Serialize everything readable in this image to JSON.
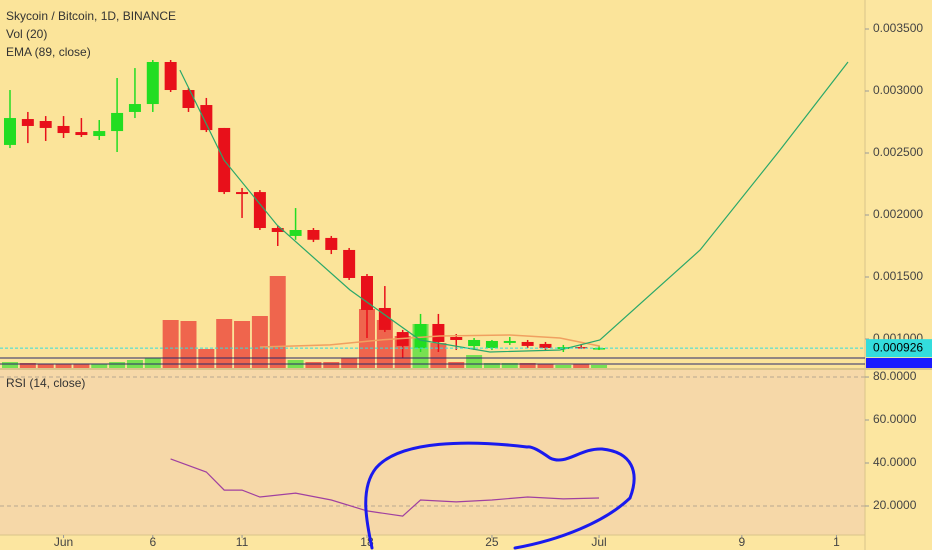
{
  "chart_data": {
    "type": "candlestick",
    "title": "Skycoin / Bitcoin, 1D, BINANCE",
    "volume_label": "Vol (20)",
    "ema_label": "EMA (89, close)",
    "up_color": "#22dd22",
    "down_color": "#e8101a",
    "open": [
      0.002565,
      0.002774,
      0.002758,
      0.002718,
      0.002669,
      0.002637,
      0.002677,
      0.002831,
      0.002895,
      0.003234,
      0.003008,
      0.002887,
      0.002702,
      0.002185,
      0.002185,
      0.001895,
      0.001831,
      0.001879,
      0.001815,
      0.001718,
      0.001508,
      0.00125,
      0.001056,
      0.000927,
      0.001121,
      0.001016,
      0.000943,
      0.000927,
      0.000968,
      0.000976,
      0.00096,
      0.000919,
      0.000935,
      0.000919
    ],
    "high": [
      0.003008,
      0.002831,
      0.002798,
      0.002798,
      0.002782,
      0.002766,
      0.003105,
      0.003185,
      0.00325,
      0.00325,
      0.003024,
      0.002944,
      0.002702,
      0.002218,
      0.002201,
      0.001911,
      0.002056,
      0.001895,
      0.001831,
      0.001734,
      0.001524,
      0.001427,
      0.001073,
      0.001202,
      0.001202,
      0.00104,
      0.001008,
      0.000992,
      0.001016,
      0.000992,
      0.000976,
      0.000952,
      0.00096,
      0.000944
    ],
    "low": [
      0.00254,
      0.00258,
      0.002597,
      0.002621,
      0.002629,
      0.002605,
      0.002508,
      0.002782,
      0.002831,
      0.002992,
      0.002831,
      0.002669,
      0.002169,
      0.001976,
      0.001879,
      0.00175,
      0.0018,
      0.001782,
      0.001685,
      0.001476,
      0.001008,
      0.001056,
      0.000847,
      0.000895,
      0.000895,
      0.000911,
      0.000911,
      0.000911,
      0.000952,
      0.000927,
      0.000911,
      0.000895,
      0.000919,
      0.000911
    ],
    "close": [
      0.002782,
      0.002718,
      0.002702,
      0.002661,
      0.002645,
      0.002677,
      0.002823,
      0.002895,
      0.003234,
      0.003008,
      0.002863,
      0.002685,
      0.002185,
      0.002169,
      0.001895,
      0.001863,
      0.001879,
      0.0018,
      0.001718,
      0.001492,
      0.001234,
      0.001073,
      0.000944,
      0.001121,
      0.000976,
      0.000992,
      0.000992,
      0.000984,
      0.000984,
      0.000944,
      0.000927,
      0.000935,
      0.000927,
      0.000927
    ],
    "volume": [
      6,
      5,
      4,
      4,
      4,
      4,
      6,
      8,
      10,
      48,
      47,
      19,
      49,
      47,
      52,
      92,
      8,
      6,
      6,
      10,
      59,
      48,
      32,
      44,
      25,
      6,
      13,
      5,
      5,
      5,
      4,
      3,
      4,
      3
    ],
    "xlim": [
      -0.56,
      47.9
    ],
    "xticks": [
      {
        "value": 3,
        "label": "Jun"
      },
      {
        "value": 8,
        "label": "6"
      },
      {
        "value": 13,
        "label": "11"
      },
      {
        "value": 20,
        "label": "18"
      },
      {
        "value": 27,
        "label": "25"
      },
      {
        "value": 33,
        "label": "Jul"
      },
      {
        "value": 41,
        "label": "9"
      },
      {
        "value": 46.3,
        "label": "1"
      }
    ],
    "ylim": [
      0.000766,
      0.003734
    ],
    "yticks": [
      {
        "value": 0.0035,
        "label": "0.003500"
      },
      {
        "value": 0.003,
        "label": "0.003000"
      },
      {
        "value": 0.0025,
        "label": "0.002500"
      },
      {
        "value": 0.002,
        "label": "0.002000"
      },
      {
        "value": 0.0015,
        "label": "0.001500"
      },
      {
        "value": 0.001,
        "label": "0.001000"
      }
    ],
    "ema": {
      "color": "#f0a060",
      "x": [
        14,
        17.93,
        20.73,
        24.09,
        28.01,
        30.81,
        33.05
      ],
      "values": [
        0.000935,
        0.000952,
        0.000992,
        0.001024,
        0.001032,
        0.001008,
        0.000943
      ]
    },
    "trend_line": {
      "color": "#2aa86a",
      "x": [
        9.52,
        11.99,
        14.96,
        19.05,
        22.97,
        26.89,
        30.81,
        33.05,
        38.66,
        43.14,
        46.95
      ],
      "values": [
        0.003169,
        0.002443,
        0.001919,
        0.001395,
        0.000992,
        0.000895,
        0.000911,
        0.000992,
        0.001718,
        0.002524,
        0.003234
      ]
    },
    "last_price": {
      "value": 0.000926,
      "label": "0.000926",
      "color": "#33dddd"
    },
    "rsi": {
      "label": "RSI (14, close)",
      "color": "#a040a0",
      "x": [
        9,
        11,
        12,
        13,
        14,
        16,
        18,
        20,
        22,
        23,
        25,
        27,
        29,
        31,
        33
      ],
      "values": [
        41.9,
        35.8,
        27.4,
        27.4,
        24.2,
        26.0,
        22.8,
        17.7,
        15.3,
        22.8,
        21.9,
        22.8,
        24.2,
        23.3,
        23.7
      ],
      "ylim": [
        6.5,
        84.2
      ],
      "yticks": [
        {
          "value": 80,
          "label": "80.0000"
        },
        {
          "value": 60,
          "label": "60.0000"
        },
        {
          "value": 40,
          "label": "40.0000"
        },
        {
          "value": 20,
          "label": "20.0000"
        }
      ]
    }
  }
}
